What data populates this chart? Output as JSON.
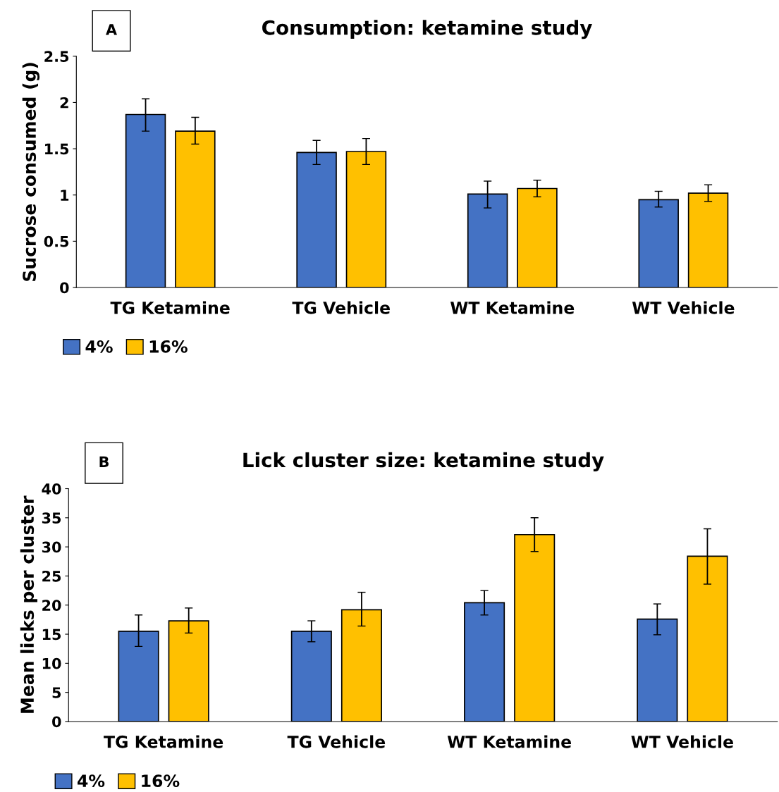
{
  "chart_data": [
    {
      "type": "bar",
      "title": "Consumption: ketamine study",
      "ylabel": "Sucrose consumed (g)",
      "annotations": [
        "A"
      ],
      "categories": [
        "TG Ketamine",
        "TG Vehicle",
        "WT Ketamine",
        "WT Vehicle"
      ],
      "series": [
        {
          "name": "4%",
          "color": "#4472c4",
          "values": [
            1.87,
            1.46,
            1.01,
            0.95
          ],
          "errors": [
            [
              1.69,
              2.04
            ],
            [
              1.33,
              1.59
            ],
            [
              0.86,
              1.15
            ],
            [
              0.87,
              1.04
            ]
          ]
        },
        {
          "name": "16%",
          "color": "#ffc000",
          "values": [
            1.69,
            1.47,
            1.07,
            1.02
          ],
          "errors": [
            [
              1.55,
              1.84
            ],
            [
              1.33,
              1.61
            ],
            [
              0.98,
              1.16
            ],
            [
              0.93,
              1.11
            ]
          ]
        }
      ],
      "ylim": [
        0,
        2.5
      ],
      "yticks": [
        0,
        0.5,
        1,
        1.5,
        2,
        2.5
      ],
      "legend": "bottom left",
      "grid": false
    },
    {
      "type": "bar",
      "title": "Lick cluster size: ketamine study",
      "ylabel": "Mean licks per cluster",
      "annotations": [
        "B"
      ],
      "categories": [
        "TG Ketamine",
        "TG Vehicle",
        "WT Ketamine",
        "WT Vehicle"
      ],
      "series": [
        {
          "name": "4%",
          "color": "#4472c4",
          "values": [
            15.5,
            15.5,
            20.4,
            17.6
          ],
          "errors": [
            [
              12.9,
              18.3
            ],
            [
              13.7,
              17.3
            ],
            [
              18.3,
              22.5
            ],
            [
              14.9,
              20.2
            ]
          ]
        },
        {
          "name": "16%",
          "color": "#ffc000",
          "values": [
            17.3,
            19.2,
            32.1,
            28.4
          ],
          "errors": [
            [
              15.2,
              19.5
            ],
            [
              16.4,
              22.2
            ],
            [
              29.2,
              35.0
            ],
            [
              23.6,
              33.1
            ]
          ]
        }
      ],
      "ylim": [
        0,
        40
      ],
      "yticks": [
        0,
        5,
        10,
        15,
        20,
        25,
        30,
        35,
        40
      ],
      "legend": "bottom left",
      "grid": false
    }
  ]
}
